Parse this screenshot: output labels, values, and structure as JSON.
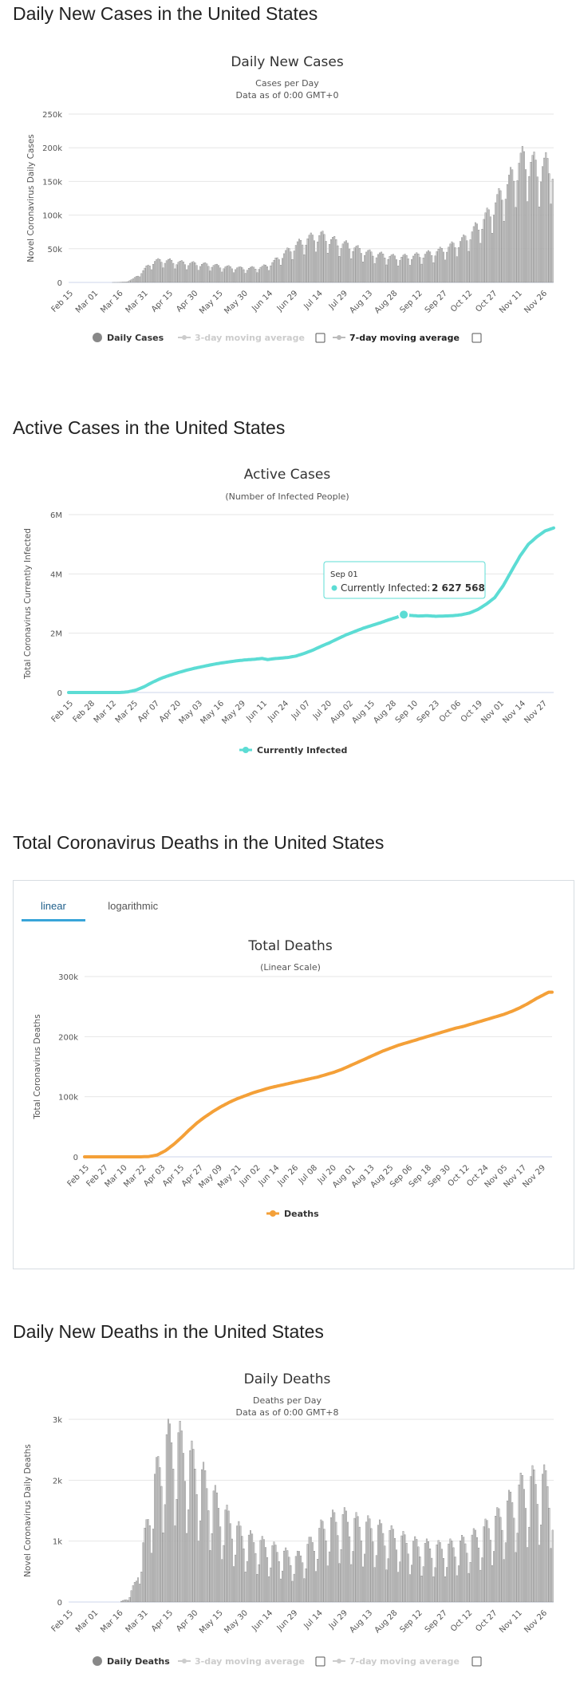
{
  "sections": {
    "daily_cases_title": "Daily New Cases in the United States",
    "active_cases_title": "Active Cases in the United States",
    "total_deaths_title": "Total Coronavirus Deaths in the United States",
    "daily_deaths_title": "Daily New Deaths in the United States"
  },
  "deaths_tabs": {
    "linear": "linear",
    "logarithmic": "logarithmic"
  },
  "chart_data": [
    {
      "type": "bar",
      "title": "Daily New Cases",
      "subtitle": [
        "Cases per Day",
        "Data as of 0:00 GMT+0"
      ],
      "ylabel": "Novel Coronavirus Daily Cases",
      "ylim": [
        0,
        250000
      ],
      "yticks": [
        0,
        50000,
        100000,
        150000,
        200000,
        250000
      ],
      "ytick_labels": [
        "0",
        "50k",
        "100k",
        "150k",
        "200k",
        "250k"
      ],
      "xtick_labels": [
        "Feb 15",
        "Mar 01",
        "Mar 16",
        "Mar 31",
        "Apr 15",
        "Apr 30",
        "May 15",
        "May 30",
        "Jun 14",
        "Jun 29",
        "Jul 14",
        "Jul 29",
        "Aug 13",
        "Aug 28",
        "Sep 12",
        "Sep 27",
        "Oct 12",
        "Oct 27",
        "Nov 11",
        "Nov 26"
      ],
      "legend": [
        "Daily Cases",
        "3-day moving average",
        "7-day moving average"
      ],
      "days": 289,
      "keyframes": [
        [
          0,
          0
        ],
        [
          25,
          0
        ],
        [
          30,
          200
        ],
        [
          34,
          700
        ],
        [
          38,
          5000
        ],
        [
          41,
          10000
        ],
        [
          44,
          17000
        ],
        [
          47,
          24000
        ],
        [
          50,
          30000
        ],
        [
          55,
          32000
        ],
        [
          60,
          31000
        ],
        [
          65,
          29000
        ],
        [
          70,
          28000
        ],
        [
          75,
          27000
        ],
        [
          80,
          26000
        ],
        [
          85,
          25000
        ],
        [
          90,
          23000
        ],
        [
          95,
          22000
        ],
        [
          100,
          21000
        ],
        [
          105,
          20000
        ],
        [
          110,
          21000
        ],
        [
          115,
          22000
        ],
        [
          118,
          25000
        ],
        [
          122,
          30000
        ],
        [
          126,
          38000
        ],
        [
          130,
          45000
        ],
        [
          134,
          52000
        ],
        [
          138,
          58000
        ],
        [
          142,
          63000
        ],
        [
          146,
          66000
        ],
        [
          150,
          68000
        ],
        [
          154,
          64000
        ],
        [
          158,
          60000
        ],
        [
          162,
          56000
        ],
        [
          166,
          54000
        ],
        [
          170,
          50000
        ],
        [
          175,
          45000
        ],
        [
          180,
          42000
        ],
        [
          185,
          40000
        ],
        [
          190,
          38000
        ],
        [
          195,
          36000
        ],
        [
          200,
          37000
        ],
        [
          205,
          38000
        ],
        [
          210,
          40000
        ],
        [
          215,
          42000
        ],
        [
          220,
          45000
        ],
        [
          225,
          50000
        ],
        [
          230,
          55000
        ],
        [
          235,
          62000
        ],
        [
          238,
          68000
        ],
        [
          242,
          78000
        ],
        [
          246,
          88000
        ],
        [
          250,
          100000
        ],
        [
          254,
          115000
        ],
        [
          258,
          130000
        ],
        [
          262,
          145000
        ],
        [
          265,
          160000
        ],
        [
          268,
          172000
        ],
        [
          271,
          180000
        ],
        [
          274,
          175000
        ],
        [
          277,
          170000
        ],
        [
          280,
          165000
        ],
        [
          283,
          168000
        ],
        [
          286,
          172000
        ],
        [
          289,
          170000
        ]
      ],
      "weekly_factors": [
        0.68,
        0.9,
        1.03,
        1.1,
        1.14,
        1.08,
        0.94
      ]
    },
    {
      "type": "line",
      "title": "Active Cases",
      "subtitle": "(Number of Infected People)",
      "ylabel": "Total Coronavirus Currently Infected",
      "ylim": [
        0,
        6000000
      ],
      "yticks": [
        0,
        2000000,
        4000000,
        6000000
      ],
      "ytick_labels": [
        "0",
        "2M",
        "4M",
        "6M"
      ],
      "xtick_labels": [
        "Feb 15",
        "Feb 28",
        "Mar 12",
        "Mar 25",
        "Apr 07",
        "Apr 20",
        "May 03",
        "May 16",
        "May 29",
        "Jun 11",
        "Jun 24",
        "Jul 07",
        "Jul 20",
        "Aug 02",
        "Aug 15",
        "Aug 28",
        "Sep 10",
        "Sep 23",
        "Oct 06",
        "Oct 19",
        "Nov 01",
        "Nov 14",
        "Nov 27"
      ],
      "legend": [
        "Currently Infected"
      ],
      "tooltip": {
        "date": "Sep 01",
        "label": "Currently Infected:",
        "value": "2 627 568",
        "day": 199,
        "y": 2627568
      },
      "days": 289,
      "keyframes": [
        [
          0,
          0
        ],
        [
          30,
          0
        ],
        [
          35,
          20000
        ],
        [
          40,
          80000
        ],
        [
          45,
          200000
        ],
        [
          50,
          350000
        ],
        [
          55,
          480000
        ],
        [
          60,
          580000
        ],
        [
          65,
          670000
        ],
        [
          70,
          750000
        ],
        [
          75,
          820000
        ],
        [
          80,
          880000
        ],
        [
          85,
          940000
        ],
        [
          90,
          990000
        ],
        [
          95,
          1030000
        ],
        [
          100,
          1070000
        ],
        [
          105,
          1100000
        ],
        [
          110,
          1120000
        ],
        [
          115,
          1150000
        ],
        [
          118,
          1110000
        ],
        [
          122,
          1140000
        ],
        [
          126,
          1160000
        ],
        [
          130,
          1180000
        ],
        [
          135,
          1230000
        ],
        [
          140,
          1320000
        ],
        [
          145,
          1430000
        ],
        [
          150,
          1560000
        ],
        [
          155,
          1680000
        ],
        [
          160,
          1820000
        ],
        [
          165,
          1950000
        ],
        [
          170,
          2060000
        ],
        [
          175,
          2170000
        ],
        [
          180,
          2260000
        ],
        [
          185,
          2350000
        ],
        [
          190,
          2450000
        ],
        [
          195,
          2540000
        ],
        [
          199,
          2627568
        ],
        [
          203,
          2600000
        ],
        [
          208,
          2580000
        ],
        [
          213,
          2590000
        ],
        [
          218,
          2570000
        ],
        [
          223,
          2580000
        ],
        [
          228,
          2590000
        ],
        [
          233,
          2620000
        ],
        [
          238,
          2680000
        ],
        [
          243,
          2800000
        ],
        [
          248,
          2980000
        ],
        [
          253,
          3200000
        ],
        [
          258,
          3600000
        ],
        [
          263,
          4100000
        ],
        [
          268,
          4600000
        ],
        [
          273,
          5000000
        ],
        [
          278,
          5250000
        ],
        [
          283,
          5450000
        ],
        [
          288,
          5550000
        ]
      ]
    },
    {
      "type": "line",
      "title": "Total Deaths",
      "subtitle": "(Linear Scale)",
      "ylabel": "Total Coronavirus Deaths",
      "ylim": [
        0,
        300000
      ],
      "yticks": [
        0,
        100000,
        200000,
        300000
      ],
      "ytick_labels": [
        "0",
        "100k",
        "200k",
        "300k"
      ],
      "xtick_labels": [
        "Feb 15",
        "Feb 27",
        "Mar 10",
        "Mar 22",
        "Apr 03",
        "Apr 15",
        "Apr 27",
        "May 09",
        "May 21",
        "Jun 02",
        "Jun 14",
        "Jun 26",
        "Jul 08",
        "Jul 20",
        "Aug 01",
        "Aug 13",
        "Aug 25",
        "Sep 06",
        "Sep 18",
        "Sep 30",
        "Oct 12",
        "Oct 24",
        "Nov 05",
        "Nov 17",
        "Nov 29"
      ],
      "legend": [
        "Deaths"
      ],
      "days": 291,
      "keyframes": [
        [
          0,
          0
        ],
        [
          35,
          0
        ],
        [
          40,
          500
        ],
        [
          45,
          3000
        ],
        [
          50,
          10000
        ],
        [
          55,
          20000
        ],
        [
          60,
          32000
        ],
        [
          65,
          45000
        ],
        [
          70,
          57000
        ],
        [
          75,
          67000
        ],
        [
          80,
          76000
        ],
        [
          85,
          84000
        ],
        [
          90,
          91000
        ],
        [
          95,
          97000
        ],
        [
          100,
          102000
        ],
        [
          105,
          107000
        ],
        [
          110,
          111000
        ],
        [
          115,
          115000
        ],
        [
          120,
          118000
        ],
        [
          125,
          121000
        ],
        [
          130,
          124000
        ],
        [
          135,
          127000
        ],
        [
          140,
          130000
        ],
        [
          145,
          133000
        ],
        [
          150,
          137000
        ],
        [
          155,
          141000
        ],
        [
          160,
          146000
        ],
        [
          165,
          152000
        ],
        [
          170,
          158000
        ],
        [
          175,
          164000
        ],
        [
          180,
          170000
        ],
        [
          185,
          176000
        ],
        [
          190,
          181000
        ],
        [
          195,
          186000
        ],
        [
          200,
          190000
        ],
        [
          205,
          194000
        ],
        [
          210,
          198000
        ],
        [
          215,
          202000
        ],
        [
          220,
          206000
        ],
        [
          225,
          210000
        ],
        [
          230,
          214000
        ],
        [
          235,
          217000
        ],
        [
          240,
          221000
        ],
        [
          245,
          225000
        ],
        [
          250,
          229000
        ],
        [
          255,
          233000
        ],
        [
          260,
          237000
        ],
        [
          265,
          242000
        ],
        [
          270,
          248000
        ],
        [
          275,
          255000
        ],
        [
          280,
          263000
        ],
        [
          285,
          270000
        ],
        [
          288,
          274000
        ]
      ]
    },
    {
      "type": "bar",
      "title": "Daily Deaths",
      "subtitle": [
        "Deaths per Day",
        "Data as of 0:00 GMT+8"
      ],
      "ylabel": "Novel Coronavirus Daily Deaths",
      "ylim": [
        0,
        3000
      ],
      "yticks": [
        0,
        1000,
        2000,
        3000
      ],
      "ytick_labels": [
        "0",
        "1k",
        "2k",
        "3k"
      ],
      "xtick_labels": [
        "Feb 15",
        "Mar 01",
        "Mar 16",
        "Mar 31",
        "Apr 15",
        "Apr 30",
        "May 15",
        "May 30",
        "Jun 14",
        "Jun 29",
        "Jul 14",
        "Jul 29",
        "Aug 13",
        "Aug 28",
        "Sep 12",
        "Sep 27",
        "Oct 12",
        "Oct 27",
        "Nov 11",
        "Nov 26"
      ],
      "legend": [
        "Daily Deaths",
        "3-day moving average",
        "7-day moving average"
      ],
      "days": 289,
      "keyframes": [
        [
          0,
          0
        ],
        [
          30,
          0
        ],
        [
          35,
          50
        ],
        [
          40,
          300
        ],
        [
          45,
          900
        ],
        [
          50,
          1600
        ],
        [
          55,
          2000
        ],
        [
          58,
          2200
        ],
        [
          62,
          2300
        ],
        [
          66,
          2200
        ],
        [
          70,
          2050
        ],
        [
          75,
          1900
        ],
        [
          80,
          1700
        ],
        [
          85,
          1500
        ],
        [
          90,
          1300
        ],
        [
          95,
          1150
        ],
        [
          100,
          1000
        ],
        [
          105,
          900
        ],
        [
          110,
          850
        ],
        [
          115,
          800
        ],
        [
          120,
          750
        ],
        [
          125,
          700
        ],
        [
          130,
          650
        ],
        [
          135,
          600
        ],
        [
          140,
          700
        ],
        [
          145,
          850
        ],
        [
          150,
          1000
        ],
        [
          155,
          1100
        ],
        [
          160,
          1150
        ],
        [
          165,
          1150
        ],
        [
          170,
          1100
        ],
        [
          175,
          1050
        ],
        [
          180,
          1050
        ],
        [
          185,
          1000
        ],
        [
          190,
          950
        ],
        [
          195,
          900
        ],
        [
          200,
          850
        ],
        [
          205,
          800
        ],
        [
          210,
          780
        ],
        [
          215,
          760
        ],
        [
          220,
          750
        ],
        [
          225,
          760
        ],
        [
          230,
          780
        ],
        [
          235,
          820
        ],
        [
          240,
          880
        ],
        [
          245,
          950
        ],
        [
          250,
          1050
        ],
        [
          255,
          1150
        ],
        [
          260,
          1300
        ],
        [
          265,
          1450
        ],
        [
          270,
          1600
        ],
        [
          275,
          1650
        ],
        [
          280,
          1700
        ],
        [
          285,
          1650
        ],
        [
          289,
          1550
        ]
      ],
      "weekly_factors": [
        0.55,
        0.75,
        1.25,
        1.35,
        1.3,
        1.15,
        0.95
      ]
    }
  ]
}
